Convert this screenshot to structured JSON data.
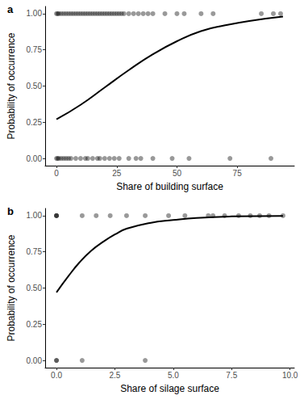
{
  "chart_data": [
    {
      "type": "scatter",
      "title": "a",
      "x_label": "Share of building surface",
      "y_label": "Probability of occurrence",
      "xlim": [
        -4.7,
        98.7
      ],
      "ylim": [
        -0.05,
        1.05
      ],
      "xticks": [
        0,
        25,
        50,
        75
      ],
      "yticks": [
        {
          "value": 0,
          "label": "0.00"
        },
        {
          "value": 0.25,
          "label": "0.25"
        },
        {
          "value": 0.5,
          "label": "0.50"
        },
        {
          "value": 0.75,
          "label": "0.75"
        },
        {
          "value": 1,
          "label": "1.00"
        }
      ],
      "grid": false,
      "series": [
        {
          "type": "scatter",
          "color": "#000000",
          "marker": "circle",
          "x": [
            0,
            0.5,
            1,
            2,
            3,
            4,
            5,
            6,
            7,
            8,
            9,
            10,
            11,
            12,
            13,
            14,
            15,
            16,
            17,
            18,
            19,
            20,
            21,
            22,
            23,
            24,
            25,
            26,
            27,
            28,
            30,
            32,
            34,
            36,
            38,
            40,
            45,
            50,
            53,
            60,
            65,
            85,
            90,
            93,
            0,
            0.5,
            1,
            2,
            3,
            4,
            5,
            6,
            8,
            10,
            12,
            13,
            15,
            17,
            18,
            20,
            22,
            24,
            26,
            30,
            33,
            35,
            40,
            48,
            55,
            72,
            89
          ],
          "values": [
            1,
            1,
            1,
            1,
            1,
            1,
            1,
            1,
            1,
            1,
            1,
            1,
            1,
            1,
            1,
            1,
            1,
            1,
            1,
            1,
            1,
            1,
            1,
            1,
            1,
            1,
            1,
            1,
            1,
            1,
            1,
            1,
            1,
            1,
            1,
            1,
            1,
            1,
            1,
            1,
            1,
            1,
            1,
            1,
            0,
            0,
            0,
            0,
            0,
            0,
            0,
            0,
            0,
            0,
            0,
            0,
            0,
            0,
            0,
            0,
            0,
            0,
            0,
            0,
            0,
            0,
            0,
            0,
            0,
            0,
            0
          ]
        },
        {
          "type": "line",
          "color": "#000000",
          "line_style": "solid",
          "x": [
            0,
            10,
            20,
            30,
            40,
            50,
            60,
            70,
            80,
            94
          ],
          "values": [
            0.27,
            0.37,
            0.49,
            0.61,
            0.72,
            0.81,
            0.88,
            0.92,
            0.95,
            0.98
          ]
        }
      ]
    },
    {
      "type": "scatter",
      "title": "b",
      "x_label": "Share of silage surface",
      "y_label": "Probability of occurrence",
      "xlim": [
        -0.485,
        10.185
      ],
      "ylim": [
        -0.05,
        1.05
      ],
      "xticks": [
        {
          "value": 0,
          "label": "0.0"
        },
        {
          "value": 2.5,
          "label": "2.5"
        },
        {
          "value": 5,
          "label": "5.0"
        },
        {
          "value": 7.5,
          "label": "7.5"
        },
        {
          "value": 10,
          "label": "10.0"
        }
      ],
      "yticks": [
        {
          "value": 0,
          "label": "0.00"
        },
        {
          "value": 0.25,
          "label": "0.25"
        },
        {
          "value": 0.5,
          "label": "0.50"
        },
        {
          "value": 0.75,
          "label": "0.75"
        },
        {
          "value": 1,
          "label": "1.00"
        }
      ],
      "grid": false,
      "series": [
        {
          "type": "scatter",
          "color": "#000000",
          "marker": "circle",
          "x": [
            0,
            0,
            0,
            1.1,
            1.7,
            2.3,
            3.0,
            3.8,
            4.8,
            5.5,
            6.5,
            6.7,
            7.2,
            7.8,
            8.3,
            8.7,
            9.1,
            9.7,
            0,
            0,
            1.1,
            3.8
          ],
          "values": [
            1,
            1,
            1,
            1,
            1,
            1,
            1,
            1,
            1,
            1,
            1,
            1,
            1,
            1,
            1,
            1,
            1,
            1,
            0,
            0,
            0,
            0
          ]
        },
        {
          "type": "line",
          "color": "#000000",
          "line_style": "solid",
          "x": [
            0,
            0.5,
            1,
            1.5,
            2,
            2.5,
            3,
            4,
            5,
            6,
            7.5,
            9.7
          ],
          "values": [
            0.47,
            0.58,
            0.68,
            0.76,
            0.82,
            0.87,
            0.91,
            0.95,
            0.97,
            0.985,
            0.995,
            0.999
          ]
        }
      ]
    }
  ]
}
